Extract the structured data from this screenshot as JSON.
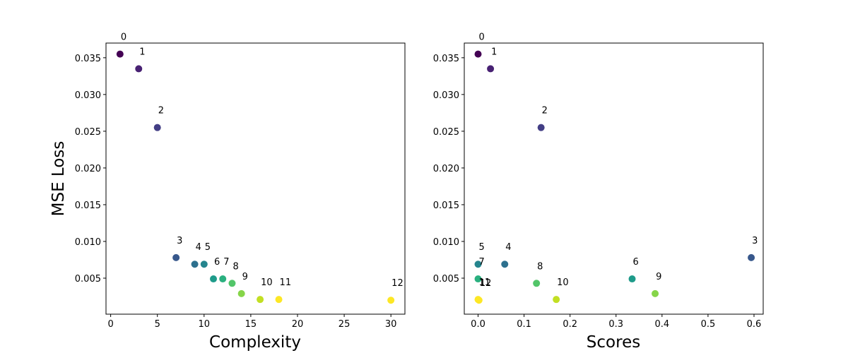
{
  "colors": {
    "0": "#440154",
    "1": "#482173",
    "2": "#433e85",
    "3": "#38588c",
    "4": "#2d708e",
    "5": "#25858e",
    "6": "#1e9b8a",
    "7": "#2ab07f",
    "8": "#52c569",
    "9": "#86d549",
    "10": "#c2df23",
    "11": "#fde725",
    "12": "#fde725"
  },
  "chart_data": [
    {
      "type": "scatter",
      "title": "",
      "xlabel": "Complexity",
      "ylabel": "MSE Loss",
      "xlim": [
        -0.5,
        31.5
      ],
      "ylim": [
        0.0001,
        0.037
      ],
      "xticks": [
        0,
        5,
        10,
        15,
        20,
        25,
        30
      ],
      "xtick_labels": [
        "0",
        "5",
        "10",
        "15",
        "20",
        "25",
        "30"
      ],
      "yticks": [
        0.005,
        0.01,
        0.015,
        0.02,
        0.025,
        0.03,
        0.035
      ],
      "ytick_labels": [
        "0.005",
        "0.010",
        "0.015",
        "0.020",
        "0.025",
        "0.030",
        "0.035"
      ],
      "grid": false,
      "points": [
        {
          "label": "0",
          "x": 1,
          "y": 0.0355
        },
        {
          "label": "1",
          "x": 3,
          "y": 0.0335
        },
        {
          "label": "2",
          "x": 5,
          "y": 0.0255
        },
        {
          "label": "3",
          "x": 7,
          "y": 0.0078
        },
        {
          "label": "4",
          "x": 9,
          "y": 0.0069
        },
        {
          "label": "5",
          "x": 10,
          "y": 0.0069
        },
        {
          "label": "6",
          "x": 11,
          "y": 0.0049
        },
        {
          "label": "7",
          "x": 12,
          "y": 0.0049
        },
        {
          "label": "8",
          "x": 13,
          "y": 0.0043
        },
        {
          "label": "9",
          "x": 14,
          "y": 0.0029
        },
        {
          "label": "10",
          "x": 16,
          "y": 0.0021
        },
        {
          "label": "11",
          "x": 18,
          "y": 0.0021
        },
        {
          "label": "12",
          "x": 30,
          "y": 0.002
        }
      ]
    },
    {
      "type": "scatter",
      "title": "",
      "xlabel": "Scores",
      "ylabel": "",
      "xlim": [
        -0.03,
        0.62
      ],
      "ylim": [
        0.0001,
        0.037
      ],
      "xticks": [
        0.0,
        0.1,
        0.2,
        0.3,
        0.4,
        0.5,
        0.6
      ],
      "xtick_labels": [
        "0.0",
        "0.1",
        "0.2",
        "0.3",
        "0.4",
        "0.5",
        "0.6"
      ],
      "yticks": [
        0.005,
        0.01,
        0.015,
        0.02,
        0.025,
        0.03,
        0.035
      ],
      "ytick_labels": [
        "0.005",
        "0.010",
        "0.015",
        "0.020",
        "0.025",
        "0.030",
        "0.035"
      ],
      "grid": false,
      "points": [
        {
          "label": "0",
          "x": 0.0,
          "y": 0.0355
        },
        {
          "label": "1",
          "x": 0.027,
          "y": 0.0335
        },
        {
          "label": "2",
          "x": 0.137,
          "y": 0.0255
        },
        {
          "label": "3",
          "x": 0.594,
          "y": 0.0078
        },
        {
          "label": "4",
          "x": 0.058,
          "y": 0.0069
        },
        {
          "label": "5",
          "x": 0.0,
          "y": 0.0069
        },
        {
          "label": "6",
          "x": 0.335,
          "y": 0.0049
        },
        {
          "label": "7",
          "x": 0.0,
          "y": 0.0049
        },
        {
          "label": "8",
          "x": 0.127,
          "y": 0.0043
        },
        {
          "label": "9",
          "x": 0.385,
          "y": 0.0029
        },
        {
          "label": "10",
          "x": 0.17,
          "y": 0.0021
        },
        {
          "label": "11",
          "x": 0.0,
          "y": 0.0021
        },
        {
          "label": "12",
          "x": 0.002,
          "y": 0.002
        }
      ]
    }
  ]
}
